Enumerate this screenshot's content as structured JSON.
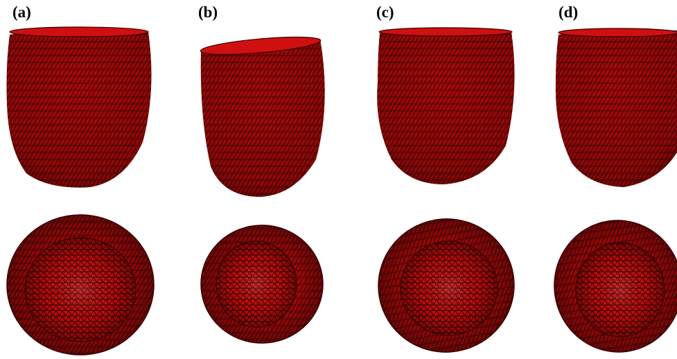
{
  "figure": {
    "panels": [
      {
        "label": "(a)"
      },
      {
        "label": "(b)"
      },
      {
        "label": "(c)"
      },
      {
        "label": "(d)"
      }
    ],
    "colors": {
      "mesh": "#c40a0a",
      "mesh_dark": "#4a0000",
      "mesh_light": "#ff3030",
      "background": "#ffffff"
    }
  }
}
